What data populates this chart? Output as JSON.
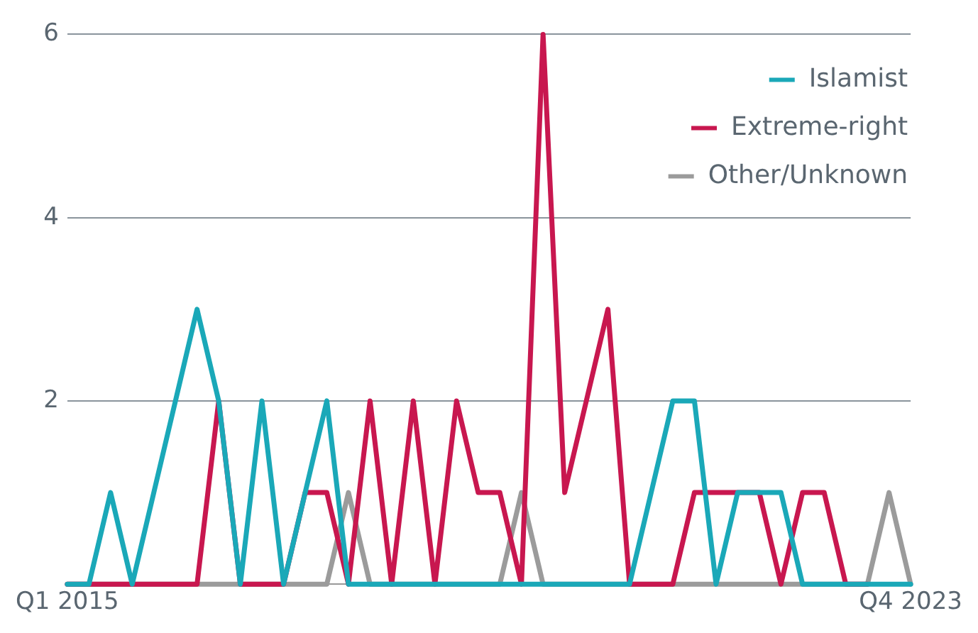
{
  "chart_data": {
    "type": "line",
    "categories": [
      "Q1 2015",
      null,
      null,
      null,
      null,
      null,
      null,
      null,
      null,
      null,
      null,
      null,
      null,
      null,
      null,
      null,
      null,
      null,
      null,
      null,
      null,
      null,
      null,
      null,
      null,
      null,
      null,
      null,
      null,
      null,
      null,
      null,
      null,
      null,
      null,
      null,
      null,
      null,
      null,
      "Q4 2023"
    ],
    "series": [
      {
        "name": "Islamist",
        "color": "#1aa8b8",
        "values": [
          0,
          0,
          1,
          0,
          1,
          2,
          3,
          2,
          0,
          2,
          0,
          1,
          2,
          0,
          0,
          0,
          0,
          0,
          0,
          0,
          0,
          0,
          0,
          0,
          0,
          0,
          0,
          1,
          2,
          2,
          0,
          1,
          1,
          1,
          0,
          0,
          0,
          0,
          0,
          0
        ]
      },
      {
        "name": "Extreme-right",
        "color": "#c8174f",
        "values": [
          0,
          0,
          0,
          0,
          0,
          0,
          0,
          2,
          0,
          0,
          0,
          1,
          1,
          0,
          2,
          0,
          2,
          0,
          2,
          1,
          1,
          0,
          6,
          1,
          2,
          3,
          0,
          0,
          0,
          1,
          1,
          1,
          1,
          0,
          1,
          1,
          0,
          0,
          null,
          null
        ]
      },
      {
        "name": "Other/Unknown",
        "color": "#9b9b9b",
        "values": [
          0,
          0,
          0,
          0,
          0,
          0,
          0,
          0,
          0,
          0,
          0,
          0,
          0,
          1,
          0,
          0,
          0,
          0,
          0,
          0,
          0,
          1,
          0,
          0,
          0,
          0,
          0,
          0,
          0,
          0,
          0,
          0,
          0,
          0,
          0,
          0,
          0,
          0,
          1,
          0
        ]
      }
    ],
    "ylim": [
      0,
      6
    ],
    "yticks": [
      {
        "value": 0,
        "label": null
      },
      2,
      4,
      6
    ],
    "grid": "y",
    "legend": "top right",
    "marker": "none",
    "line_style": "solid"
  }
}
